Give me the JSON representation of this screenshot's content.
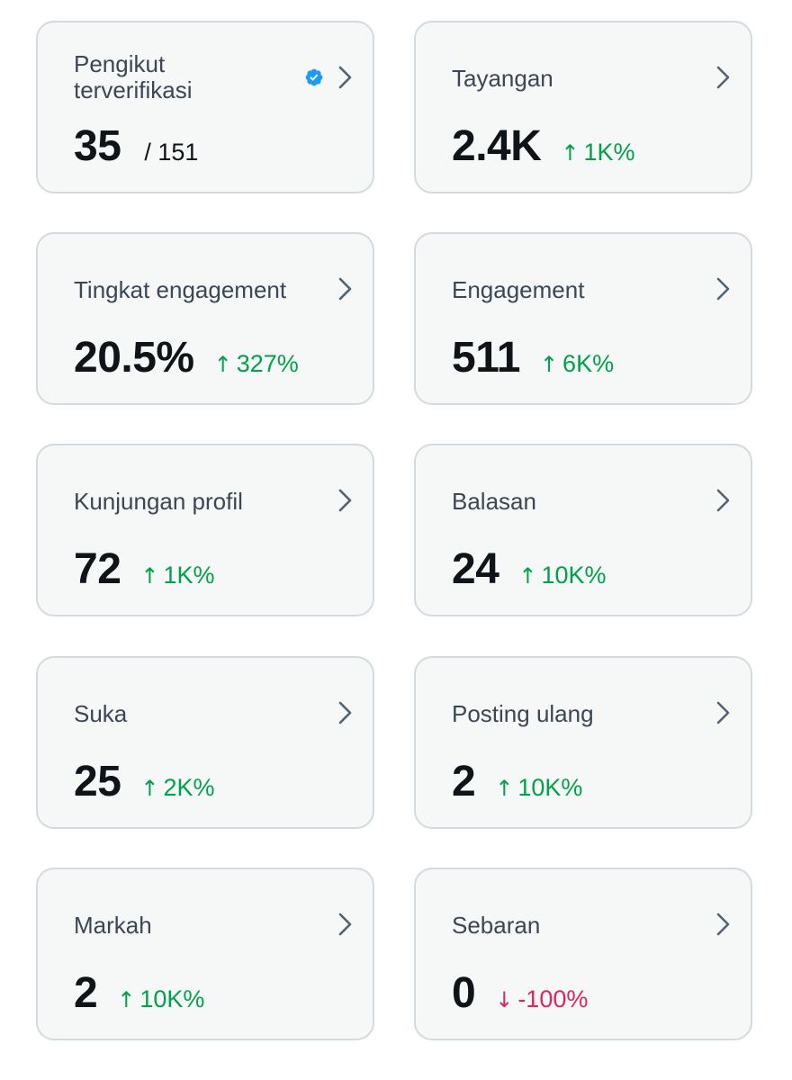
{
  "colors": {
    "card_background": "#f6f7f7",
    "card_border": "#d3dbe0",
    "label": "#3b4754",
    "value": "#0f1419",
    "up": "#00a14b",
    "down": "#e0245e",
    "verified": "#1d9bf0",
    "chevron": "#536471"
  },
  "cards": [
    {
      "label": "Pengikut terverifikasi",
      "value": "35",
      "total": "/ 151",
      "verified_icon": "verified-badge-icon"
    },
    {
      "label": "Tayangan",
      "value": "2.4K",
      "arrow": "↑",
      "change": "1K%",
      "direction": "up"
    },
    {
      "label": "Tingkat engagement",
      "value": "20.5%",
      "arrow": "↑",
      "change": "327%",
      "direction": "up"
    },
    {
      "label": "Engagement",
      "value": "511",
      "arrow": "↑",
      "change": "6K%",
      "direction": "up"
    },
    {
      "label": "Kunjungan profil",
      "value": "72",
      "arrow": "↑",
      "change": "1K%",
      "direction": "up"
    },
    {
      "label": "Balasan",
      "value": "24",
      "arrow": "↑",
      "change": "10K%",
      "direction": "up"
    },
    {
      "label": "Suka",
      "value": "25",
      "arrow": "↑",
      "change": "2K%",
      "direction": "up"
    },
    {
      "label": "Posting ulang",
      "value": "2",
      "arrow": "↑",
      "change": "10K%",
      "direction": "up"
    },
    {
      "label": "Markah",
      "value": "2",
      "arrow": "↑",
      "change": "10K%",
      "direction": "up"
    },
    {
      "label": "Sebaran",
      "value": "0",
      "arrow": "↓",
      "change": "-100%",
      "direction": "down"
    }
  ],
  "icons": {
    "chevron": "chevron-right-icon",
    "verified": "verified-badge-icon"
  }
}
